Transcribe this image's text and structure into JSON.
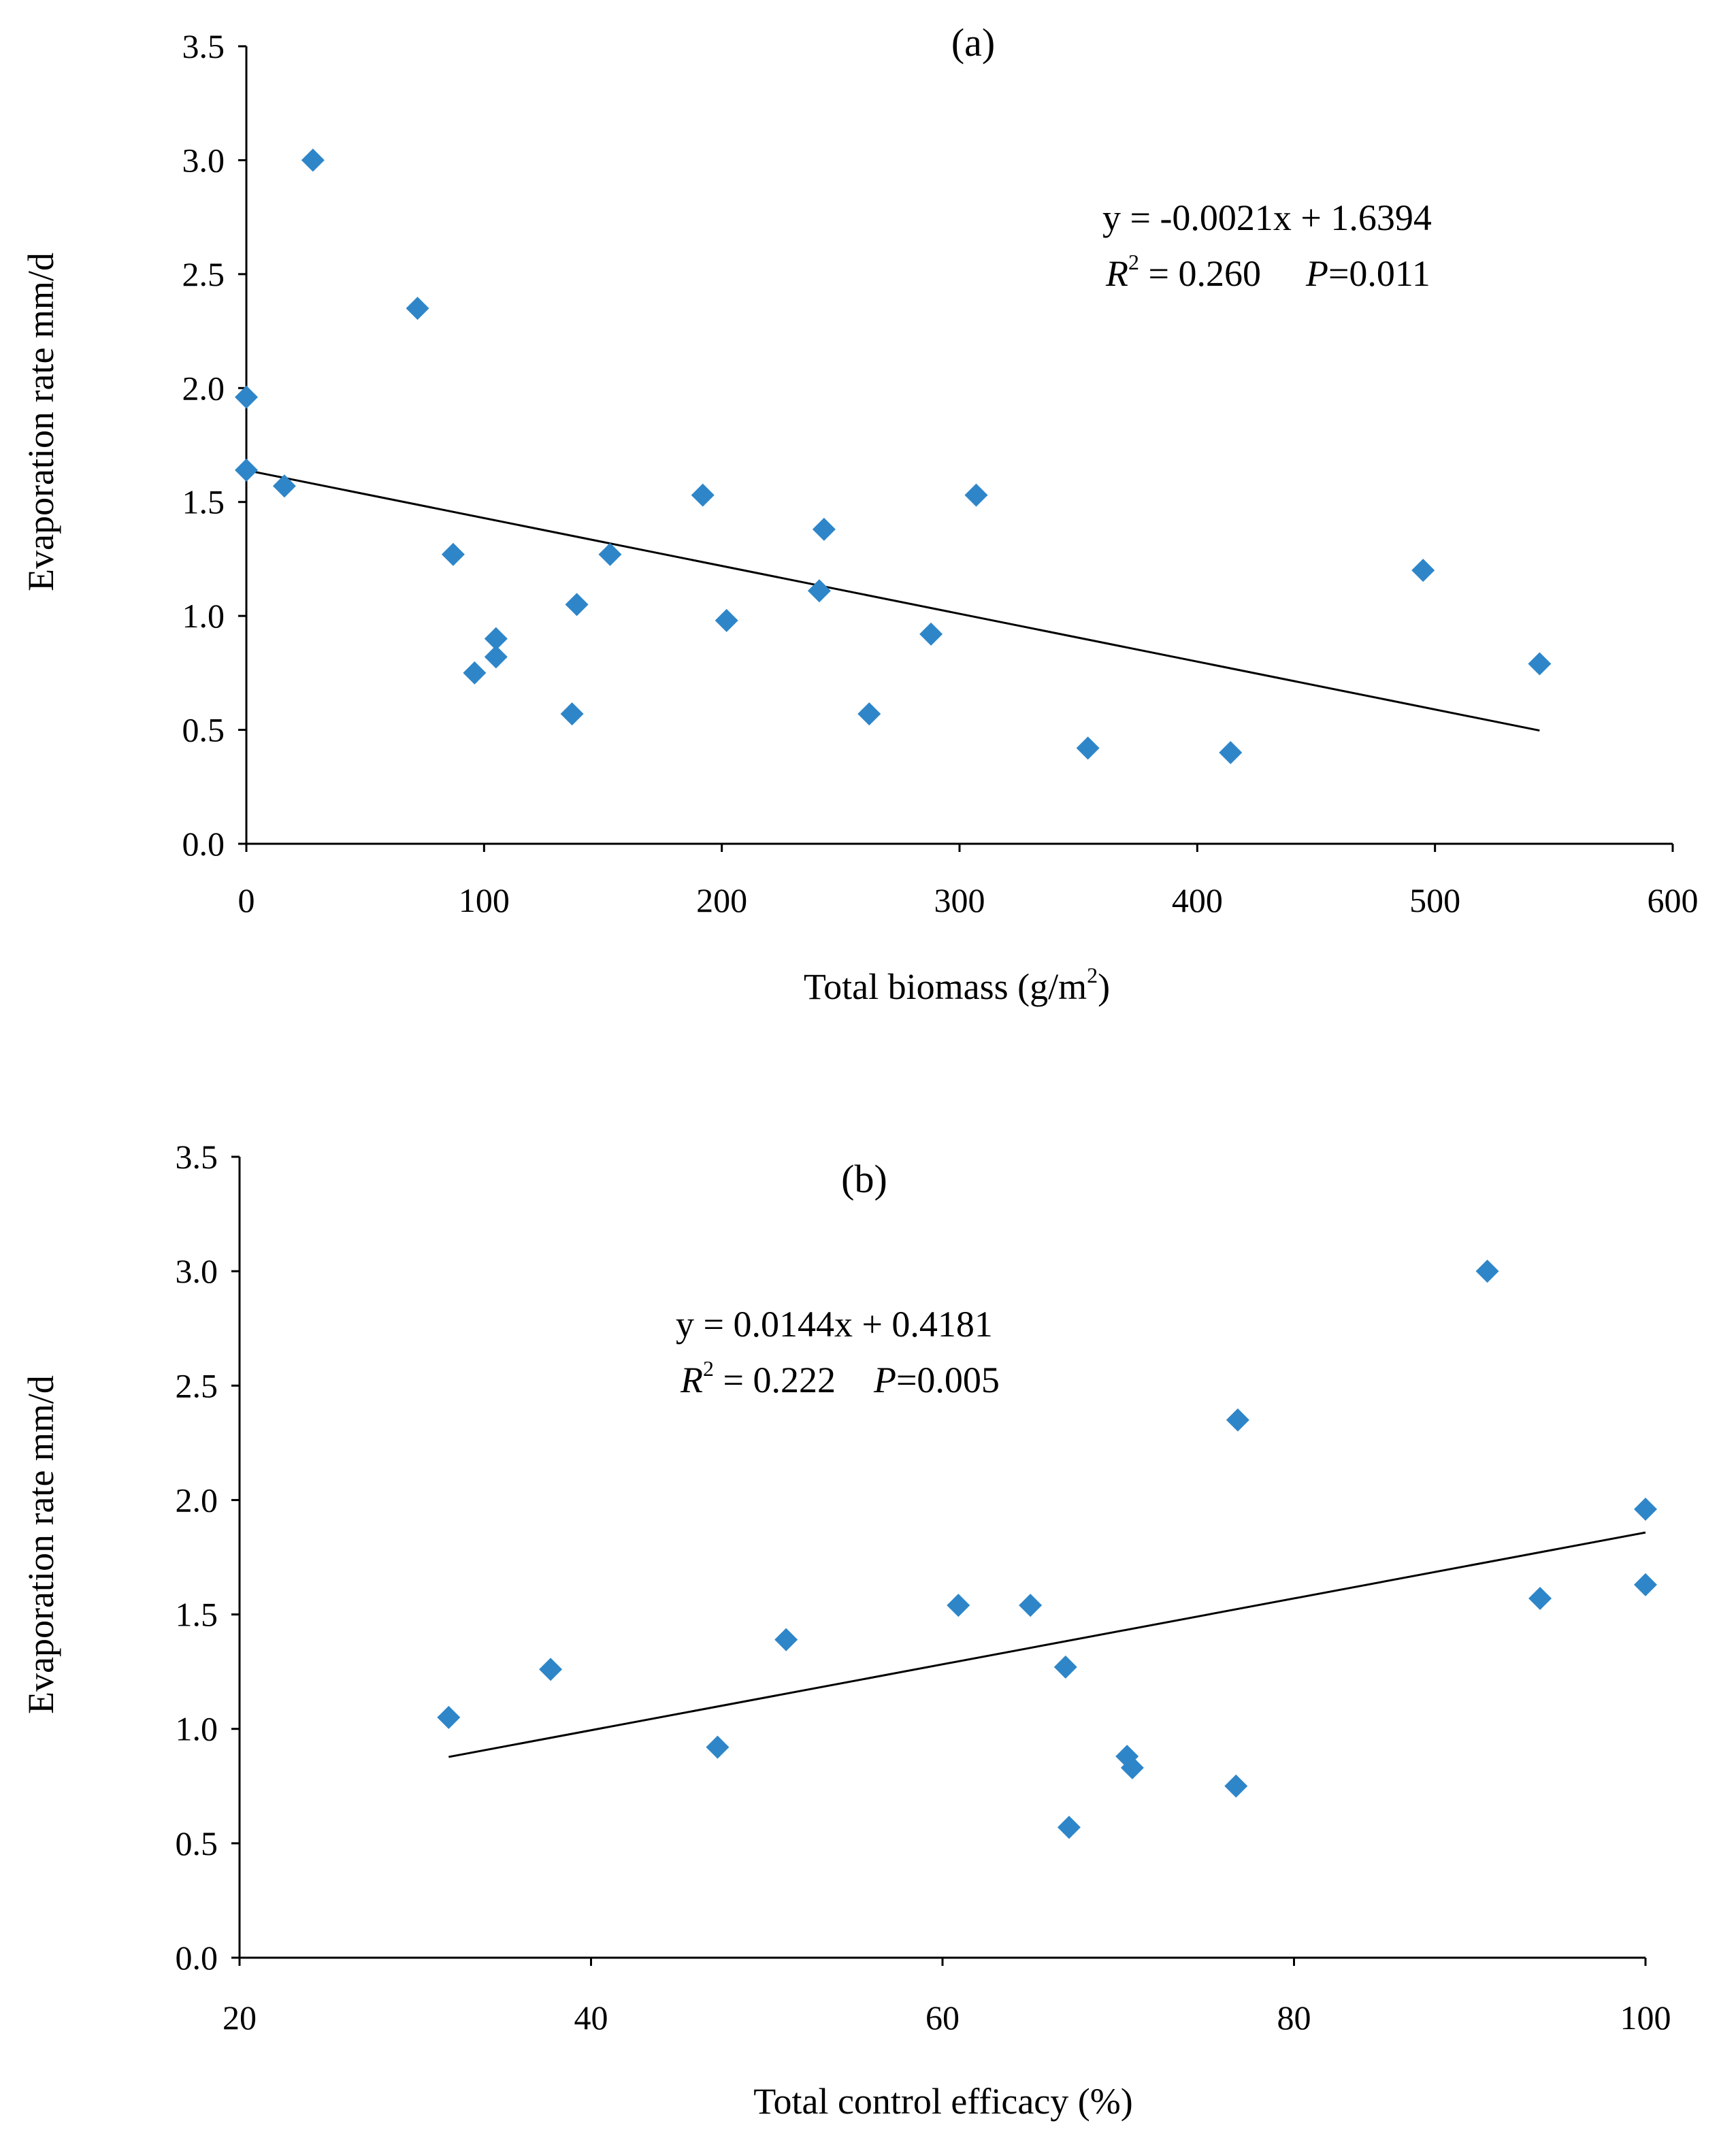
{
  "chart_data": [
    {
      "type": "scatter",
      "panel_label": "(a)",
      "xlabel": "Total biomass (g/m",
      "xlabel_sup": "2",
      "xlabel_end": ")",
      "ylabel": "Evaporation rate mm/d",
      "xlim": [
        0,
        600
      ],
      "ylim": [
        0,
        3.5
      ],
      "xticks": [
        "0",
        "100",
        "200",
        "300",
        "400",
        "500",
        "600"
      ],
      "yticks": [
        "0.0",
        "0.5",
        "1.0",
        "1.5",
        "2.0",
        "2.5",
        "3.0",
        "3.5"
      ],
      "marker_color": "#2E86C9",
      "points": [
        [
          0,
          1.96
        ],
        [
          0,
          1.64
        ],
        [
          16,
          1.57
        ],
        [
          28,
          3.0
        ],
        [
          72,
          2.35
        ],
        [
          87,
          1.27
        ],
        [
          96,
          0.75
        ],
        [
          105,
          0.9
        ],
        [
          105,
          0.82
        ],
        [
          137,
          0.57
        ],
        [
          139,
          1.05
        ],
        [
          153,
          1.27
        ],
        [
          192,
          1.53
        ],
        [
          202,
          0.98
        ],
        [
          241,
          1.11
        ],
        [
          243,
          1.38
        ],
        [
          262,
          0.57
        ],
        [
          288,
          0.92
        ],
        [
          307,
          1.53
        ],
        [
          354,
          0.42
        ],
        [
          414,
          0.4
        ],
        [
          495,
          1.2
        ],
        [
          544,
          0.79
        ]
      ],
      "trendline": {
        "x_start": 0,
        "x_end": 544,
        "slope": -0.0021,
        "intercept": 1.6394
      },
      "equation": "y = -0.0021x + 1.6394",
      "r2_label": "R",
      "r2_sup": "2",
      "r2_value": " = 0.260",
      "p_label": "P",
      "p_value": "=0.011"
    },
    {
      "type": "scatter",
      "panel_label": "(b)",
      "xlabel": "Total control efficacy (%)",
      "ylabel": "Evaporation rate mm/d",
      "xlim": [
        20,
        100
      ],
      "ylim": [
        0,
        3.5
      ],
      "xticks": [
        "20",
        "40",
        "60",
        "80",
        "100"
      ],
      "yticks": [
        "0.0",
        "0.5",
        "1.0",
        "1.5",
        "2.0",
        "2.5",
        "3.0",
        "3.5"
      ],
      "marker_color": "#2E86C9",
      "points": [
        [
          31.9,
          1.05
        ],
        [
          37.7,
          1.26
        ],
        [
          47.2,
          0.92
        ],
        [
          51.1,
          1.39
        ],
        [
          60.9,
          1.54
        ],
        [
          65.0,
          1.54
        ],
        [
          67.0,
          1.27
        ],
        [
          67.2,
          0.57
        ],
        [
          70.5,
          0.88
        ],
        [
          70.8,
          0.83
        ],
        [
          76.7,
          0.75
        ],
        [
          76.8,
          2.35
        ],
        [
          91.0,
          3.0
        ],
        [
          94.0,
          1.57
        ],
        [
          100.0,
          1.96
        ],
        [
          100.0,
          1.63
        ]
      ],
      "trendline": {
        "x_start": 31.9,
        "x_end": 100,
        "slope": 0.0144,
        "intercept": 0.4181
      },
      "equation": "y = 0.0144x + 0.4181",
      "r2_label": "R",
      "r2_sup": "2",
      "r2_value": " = 0.222",
      "p_label": "P",
      "p_value": "=0.005"
    }
  ]
}
